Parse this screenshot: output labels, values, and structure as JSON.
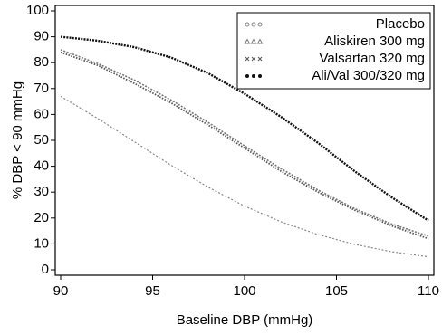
{
  "chart_data": {
    "type": "line",
    "xlabel": "Baseline DBP (mmHg)",
    "ylabel": "% DBP < 90 mmHg",
    "x": [
      90,
      92,
      94,
      96,
      98,
      100,
      102,
      104,
      106,
      108,
      110
    ],
    "series": [
      {
        "name": "Placebo",
        "color": "#888888",
        "marker": "circle",
        "values": [
          67,
          58.5,
          49.5,
          40.4,
          32,
          24.6,
          18.5,
          13.6,
          9.8,
          7,
          5
        ]
      },
      {
        "name": "Aliskiren 300 mg",
        "color": "#777777",
        "marker": "triangle",
        "values": [
          85,
          79.7,
          73.3,
          65.6,
          57,
          47.9,
          39,
          30.8,
          23.6,
          17.7,
          13
        ]
      },
      {
        "name": "Valsartan 320 mg",
        "color": "#555555",
        "marker": "cross",
        "values": [
          84,
          79,
          72,
          64.5,
          56,
          47,
          38,
          30,
          23,
          17,
          12
        ]
      },
      {
        "name": "Ali/Val 300/320 mg",
        "color": "#111111",
        "marker": "dot",
        "values": [
          90,
          88.5,
          86,
          82,
          76,
          68,
          59,
          49,
          38,
          28,
          19
        ]
      }
    ],
    "xlim": [
      90,
      110
    ],
    "xticks": [
      90,
      95,
      100,
      105,
      110
    ],
    "ylim": [
      0,
      100
    ],
    "yticks": [
      0,
      10,
      20,
      30,
      40,
      50,
      60,
      70,
      80,
      90,
      100
    ],
    "grid": false,
    "legend": "upper right"
  }
}
